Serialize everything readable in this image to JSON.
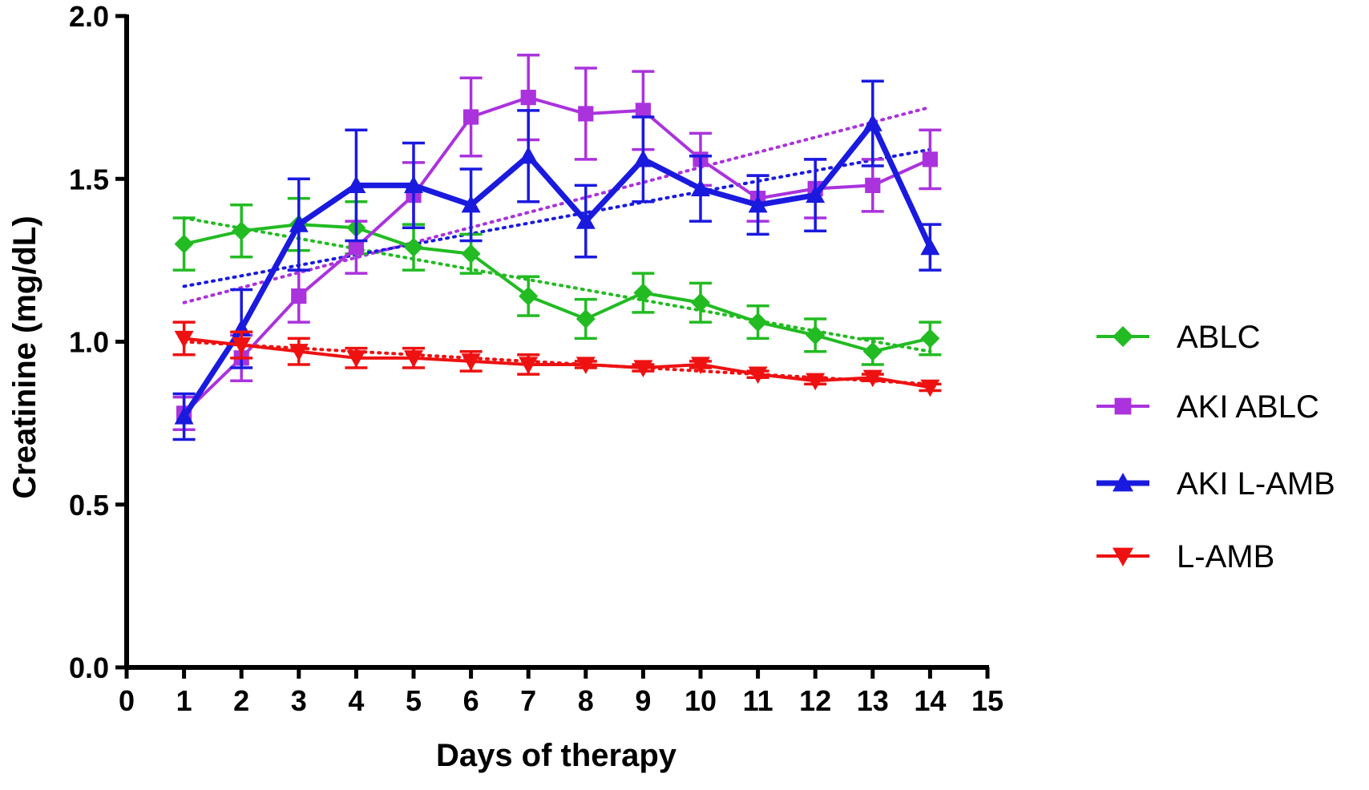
{
  "chart_data": {
    "type": "line",
    "title": "",
    "xlabel": "Days of therapy",
    "ylabel": "Creatinine (mg/dL)",
    "xlim": [
      0,
      15
    ],
    "ylim": [
      0,
      2.0
    ],
    "x_ticks": [
      0,
      1,
      2,
      3,
      4,
      5,
      6,
      7,
      8,
      9,
      10,
      11,
      12,
      13,
      14,
      15
    ],
    "x_tick_labels": [
      "0",
      "1",
      "2",
      "3",
      "4",
      "5",
      "6",
      "7",
      "8",
      "9",
      "10",
      "11",
      "12",
      "13",
      "14",
      "15"
    ],
    "y_ticks": [
      0,
      0.5,
      1.0,
      1.5,
      2.0
    ],
    "y_tick_labels": [
      "0.0",
      "0.5",
      "1.0",
      "1.5",
      "2.0"
    ],
    "grid": false,
    "legend_position": "right",
    "x": [
      1,
      2,
      3,
      4,
      5,
      6,
      7,
      8,
      9,
      10,
      11,
      12,
      13,
      14
    ],
    "series": [
      {
        "name": "ABLC",
        "color": "#22bb22",
        "marker": "diamond",
        "values": [
          1.3,
          1.34,
          1.36,
          1.35,
          1.29,
          1.27,
          1.14,
          1.07,
          1.15,
          1.12,
          1.06,
          1.02,
          0.97,
          1.01
        ],
        "error": [
          0.08,
          0.08,
          0.08,
          0.08,
          0.07,
          0.06,
          0.06,
          0.06,
          0.06,
          0.06,
          0.05,
          0.05,
          0.04,
          0.05
        ],
        "trend": [
          1.38,
          0.97
        ]
      },
      {
        "name": "AKI ABLC",
        "color": "#aa33dd",
        "marker": "square",
        "values": [
          0.78,
          0.95,
          1.14,
          1.29,
          1.45,
          1.69,
          1.75,
          1.7,
          1.71,
          1.56,
          1.44,
          1.47,
          1.48,
          1.56
        ],
        "error": [
          0.05,
          0.07,
          0.08,
          0.08,
          0.1,
          0.12,
          0.13,
          0.14,
          0.12,
          0.08,
          0.07,
          0.09,
          0.08,
          0.09
        ],
        "trend": [
          1.12,
          1.72
        ]
      },
      {
        "name": "AKI L-AMB",
        "color": "#1a1adf",
        "marker": "triangle-up",
        "values": [
          0.77,
          1.04,
          1.36,
          1.48,
          1.48,
          1.42,
          1.57,
          1.37,
          1.56,
          1.47,
          1.42,
          1.45,
          1.67,
          1.29
        ],
        "error": [
          0.07,
          0.12,
          0.14,
          0.17,
          0.13,
          0.11,
          0.14,
          0.11,
          0.13,
          0.1,
          0.09,
          0.11,
          0.13,
          0.07
        ],
        "trend": [
          1.17,
          1.59
        ]
      },
      {
        "name": "L-AMB",
        "color": "#ee1111",
        "marker": "triangle-down",
        "values": [
          1.01,
          0.99,
          0.97,
          0.95,
          0.95,
          0.94,
          0.93,
          0.93,
          0.92,
          0.93,
          0.9,
          0.88,
          0.89,
          0.86
        ],
        "error": [
          0.05,
          0.04,
          0.04,
          0.03,
          0.03,
          0.03,
          0.03,
          0.01,
          0.01,
          0.01,
          0.01,
          0.01,
          0.01,
          0.01
        ],
        "trend": [
          1.0,
          0.87
        ]
      }
    ]
  }
}
